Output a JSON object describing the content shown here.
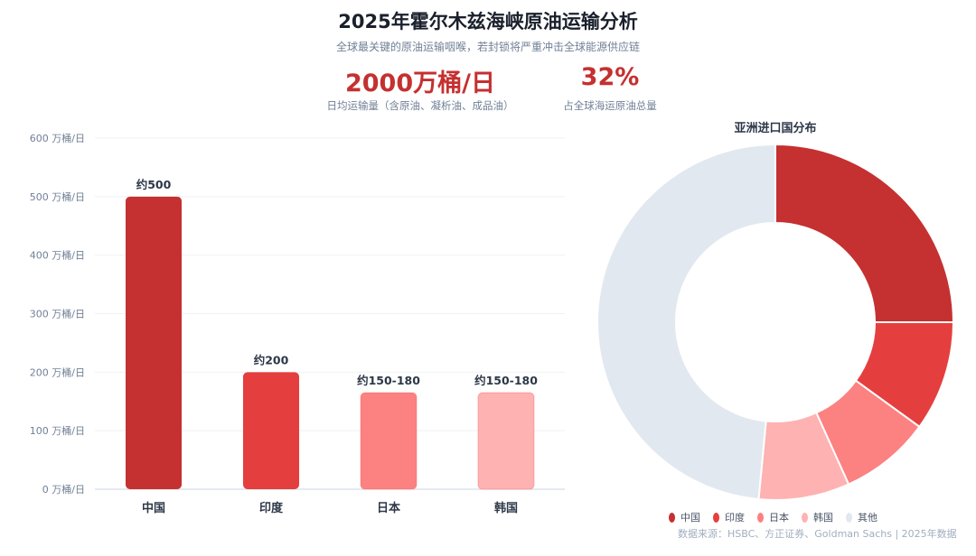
{
  "header": {
    "title": "2025年霍尔木兹海峡原油运输分析",
    "subtitle": "全球最关键的原油运输咽喉，若封锁将严重冲击全球能源供应链"
  },
  "kpis": [
    {
      "value": "2000万桶/日",
      "label": "日均运输量（含原油、凝析油、成品油）"
    },
    {
      "value": "32%",
      "label": "占全球海运原油总量"
    }
  ],
  "chart_data": [
    {
      "type": "bar",
      "title": "",
      "categories": [
        "中国",
        "印度",
        "日本",
        "韩国"
      ],
      "values": [
        500,
        200,
        165,
        165
      ],
      "data_labels": [
        "约500",
        "约200",
        "约150-180",
        "约150-180"
      ],
      "ylim": [
        0,
        600
      ],
      "yticks": [
        0,
        100,
        200,
        300,
        400,
        500,
        600
      ],
      "ytick_suffix": " 万桶/日",
      "colors": [
        "#c53030",
        "#e53e3e",
        "#fc8181",
        "#feb2b2"
      ],
      "grid": true
    },
    {
      "type": "pie",
      "title": "亚洲进口国分布",
      "donut": true,
      "categories": [
        "中国",
        "印度",
        "日本",
        "韩国",
        "其他"
      ],
      "values": [
        500,
        200,
        165,
        165,
        970
      ],
      "colors": [
        "#c53030",
        "#e53e3e",
        "#fc8181",
        "#feb2b2",
        "#e2e8f0"
      ],
      "legend": "bottom"
    }
  ],
  "footer": {
    "source": "数据来源：HSBC、方正证券、Goldman Sachs | 2025年数据"
  }
}
